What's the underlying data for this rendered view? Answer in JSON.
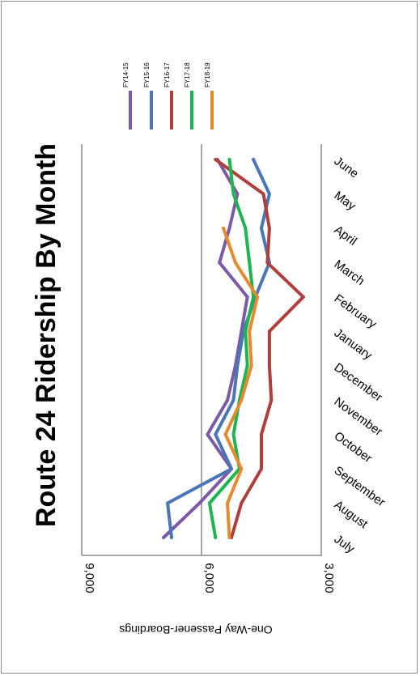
{
  "chart_data": {
    "type": "line",
    "title": "Route 24 Ridership By Month",
    "ylabel": "One-Way Passener-Boardings",
    "ylim": [
      3000,
      9000
    ],
    "yticks": [
      "9,000",
      "6,000",
      "3,000"
    ],
    "grid": true,
    "legend_position": "top",
    "categories": [
      "July",
      "August",
      "September",
      "October",
      "November",
      "December",
      "January",
      "February",
      "March",
      "April",
      "May",
      "June"
    ],
    "series": [
      {
        "name": "FY14-15",
        "color": "#7d5aa6",
        "values": [
          6950,
          6050,
          5250,
          5850,
          5350,
          5150,
          5000,
          4850,
          5550,
          5300,
          5100,
          5600
        ]
      },
      {
        "name": "FY15-16",
        "color": "#4a76b8",
        "values": [
          6750,
          6850,
          5250,
          5650,
          5200,
          5100,
          4950,
          4650,
          4300,
          4500,
          4300,
          4700
        ]
      },
      {
        "name": "FY16-17",
        "color": "#b03f3c",
        "values": [
          5250,
          5000,
          4500,
          4500,
          4250,
          4300,
          4300,
          3450,
          4350,
          4300,
          4450,
          5650
        ]
      },
      {
        "name": "FY17-18",
        "color": "#1db550",
        "values": [
          5650,
          5800,
          5050,
          5200,
          5050,
          4850,
          4900,
          4700,
          4800,
          4900,
          5200,
          5300
        ]
      },
      {
        "name": "FY18-19",
        "color": "#e68a2f",
        "values": [
          5300,
          5350,
          5000,
          5400,
          5000,
          4750,
          4800,
          4600,
          5150,
          5450,
          null,
          null
        ]
      }
    ]
  }
}
